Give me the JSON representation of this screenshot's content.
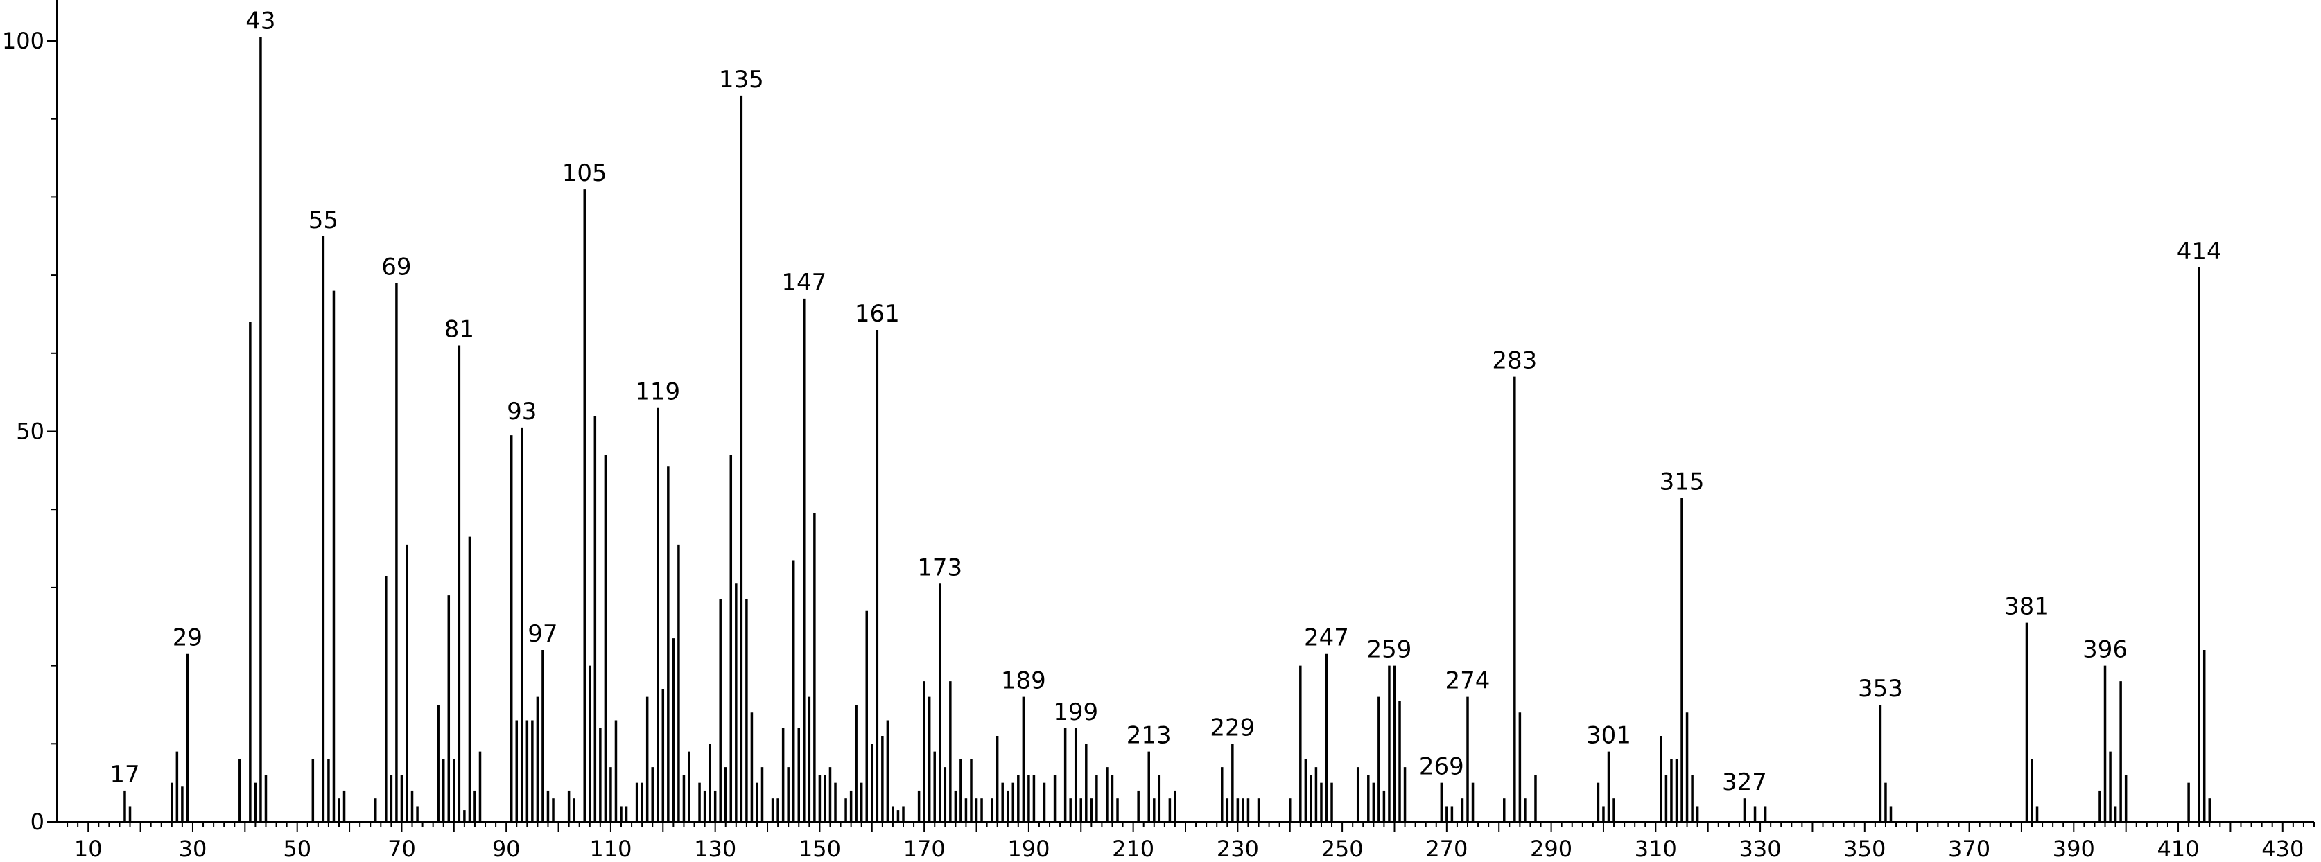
{
  "chart_data": {
    "type": "bar",
    "title": "",
    "xlabel": "",
    "ylabel": "",
    "xlim": [
      4,
      436
    ],
    "ylim": [
      0,
      105
    ],
    "xticks": [
      10,
      30,
      50,
      70,
      90,
      110,
      130,
      150,
      170,
      190,
      210,
      230,
      250,
      270,
      290,
      310,
      330,
      350,
      370,
      390,
      410,
      430
    ],
    "yticks": [
      0,
      50,
      100
    ],
    "grid": false,
    "labeled_peaks": [
      17,
      29,
      43,
      55,
      69,
      81,
      93,
      97,
      105,
      119,
      135,
      147,
      161,
      173,
      189,
      199,
      213,
      229,
      247,
      259,
      269,
      274,
      283,
      301,
      315,
      327,
      353,
      381,
      396,
      414
    ],
    "peaks": [
      {
        "x": 17,
        "y": 4
      },
      {
        "x": 18,
        "y": 2
      },
      {
        "x": 26,
        "y": 5
      },
      {
        "x": 27,
        "y": 9
      },
      {
        "x": 28,
        "y": 4.5
      },
      {
        "x": 29,
        "y": 21.5
      },
      {
        "x": 39,
        "y": 8
      },
      {
        "x": 41,
        "y": 64
      },
      {
        "x": 42,
        "y": 5
      },
      {
        "x": 43,
        "y": 100.5
      },
      {
        "x": 44,
        "y": 6
      },
      {
        "x": 53,
        "y": 8
      },
      {
        "x": 55,
        "y": 75
      },
      {
        "x": 56,
        "y": 8
      },
      {
        "x": 57,
        "y": 68
      },
      {
        "x": 58,
        "y": 3
      },
      {
        "x": 59,
        "y": 4
      },
      {
        "x": 65,
        "y": 3
      },
      {
        "x": 67,
        "y": 31.5
      },
      {
        "x": 68,
        "y": 6
      },
      {
        "x": 69,
        "y": 69
      },
      {
        "x": 70,
        "y": 6
      },
      {
        "x": 71,
        "y": 35.5
      },
      {
        "x": 72,
        "y": 4
      },
      {
        "x": 73,
        "y": 2
      },
      {
        "x": 77,
        "y": 15
      },
      {
        "x": 78,
        "y": 8
      },
      {
        "x": 79,
        "y": 29
      },
      {
        "x": 80,
        "y": 8
      },
      {
        "x": 81,
        "y": 61
      },
      {
        "x": 82,
        "y": 1.5
      },
      {
        "x": 83,
        "y": 36.5
      },
      {
        "x": 84,
        "y": 4
      },
      {
        "x": 85,
        "y": 9
      },
      {
        "x": 91,
        "y": 49.5
      },
      {
        "x": 92,
        "y": 13
      },
      {
        "x": 93,
        "y": 50.5
      },
      {
        "x": 94,
        "y": 13
      },
      {
        "x": 95,
        "y": 13
      },
      {
        "x": 96,
        "y": 16
      },
      {
        "x": 97,
        "y": 22
      },
      {
        "x": 98,
        "y": 4
      },
      {
        "x": 99,
        "y": 3
      },
      {
        "x": 102,
        "y": 4
      },
      {
        "x": 103,
        "y": 3
      },
      {
        "x": 105,
        "y": 81
      },
      {
        "x": 106,
        "y": 20
      },
      {
        "x": 107,
        "y": 52
      },
      {
        "x": 108,
        "y": 12
      },
      {
        "x": 109,
        "y": 47
      },
      {
        "x": 110,
        "y": 7
      },
      {
        "x": 111,
        "y": 13
      },
      {
        "x": 112,
        "y": 2
      },
      {
        "x": 113,
        "y": 2
      },
      {
        "x": 115,
        "y": 5
      },
      {
        "x": 116,
        "y": 5
      },
      {
        "x": 117,
        "y": 16
      },
      {
        "x": 118,
        "y": 7
      },
      {
        "x": 119,
        "y": 53
      },
      {
        "x": 120,
        "y": 17
      },
      {
        "x": 121,
        "y": 45.5
      },
      {
        "x": 122,
        "y": 23.5
      },
      {
        "x": 123,
        "y": 35.5
      },
      {
        "x": 124,
        "y": 6
      },
      {
        "x": 125,
        "y": 9
      },
      {
        "x": 127,
        "y": 5
      },
      {
        "x": 128,
        "y": 4
      },
      {
        "x": 129,
        "y": 10
      },
      {
        "x": 130,
        "y": 4
      },
      {
        "x": 131,
        "y": 28.5
      },
      {
        "x": 132,
        "y": 7
      },
      {
        "x": 133,
        "y": 47
      },
      {
        "x": 134,
        "y": 30.5
      },
      {
        "x": 135,
        "y": 93
      },
      {
        "x": 136,
        "y": 28.5
      },
      {
        "x": 137,
        "y": 14
      },
      {
        "x": 138,
        "y": 5
      },
      {
        "x": 139,
        "y": 7
      },
      {
        "x": 141,
        "y": 3
      },
      {
        "x": 142,
        "y": 3
      },
      {
        "x": 143,
        "y": 12
      },
      {
        "x": 144,
        "y": 7
      },
      {
        "x": 145,
        "y": 33.5
      },
      {
        "x": 146,
        "y": 12
      },
      {
        "x": 147,
        "y": 67
      },
      {
        "x": 148,
        "y": 16
      },
      {
        "x": 149,
        "y": 39.5
      },
      {
        "x": 150,
        "y": 6
      },
      {
        "x": 151,
        "y": 6
      },
      {
        "x": 152,
        "y": 7
      },
      {
        "x": 153,
        "y": 5
      },
      {
        "x": 155,
        "y": 3
      },
      {
        "x": 156,
        "y": 4
      },
      {
        "x": 157,
        "y": 15
      },
      {
        "x": 158,
        "y": 5
      },
      {
        "x": 159,
        "y": 27
      },
      {
        "x": 160,
        "y": 10
      },
      {
        "x": 161,
        "y": 63
      },
      {
        "x": 162,
        "y": 11
      },
      {
        "x": 163,
        "y": 13
      },
      {
        "x": 164,
        "y": 2
      },
      {
        "x": 165,
        "y": 1.5
      },
      {
        "x": 166,
        "y": 2
      },
      {
        "x": 169,
        "y": 4
      },
      {
        "x": 170,
        "y": 18
      },
      {
        "x": 171,
        "y": 16
      },
      {
        "x": 172,
        "y": 9
      },
      {
        "x": 173,
        "y": 30.5
      },
      {
        "x": 174,
        "y": 7
      },
      {
        "x": 175,
        "y": 18
      },
      {
        "x": 176,
        "y": 4
      },
      {
        "x": 177,
        "y": 8
      },
      {
        "x": 178,
        "y": 3
      },
      {
        "x": 179,
        "y": 8
      },
      {
        "x": 180,
        "y": 3
      },
      {
        "x": 181,
        "y": 3
      },
      {
        "x": 183,
        "y": 3
      },
      {
        "x": 184,
        "y": 11
      },
      {
        "x": 185,
        "y": 5
      },
      {
        "x": 186,
        "y": 4
      },
      {
        "x": 187,
        "y": 5
      },
      {
        "x": 188,
        "y": 6
      },
      {
        "x": 189,
        "y": 16
      },
      {
        "x": 190,
        "y": 6
      },
      {
        "x": 191,
        "y": 6
      },
      {
        "x": 193,
        "y": 5
      },
      {
        "x": 195,
        "y": 6
      },
      {
        "x": 197,
        "y": 12
      },
      {
        "x": 198,
        "y": 3
      },
      {
        "x": 199,
        "y": 12
      },
      {
        "x": 200,
        "y": 3
      },
      {
        "x": 201,
        "y": 10
      },
      {
        "x": 202,
        "y": 3
      },
      {
        "x": 203,
        "y": 6
      },
      {
        "x": 205,
        "y": 7
      },
      {
        "x": 206,
        "y": 6
      },
      {
        "x": 207,
        "y": 3
      },
      {
        "x": 211,
        "y": 4
      },
      {
        "x": 213,
        "y": 9
      },
      {
        "x": 214,
        "y": 3
      },
      {
        "x": 215,
        "y": 6
      },
      {
        "x": 217,
        "y": 3
      },
      {
        "x": 218,
        "y": 4
      },
      {
        "x": 227,
        "y": 7
      },
      {
        "x": 228,
        "y": 3
      },
      {
        "x": 229,
        "y": 10
      },
      {
        "x": 230,
        "y": 3
      },
      {
        "x": 231,
        "y": 3
      },
      {
        "x": 232,
        "y": 3
      },
      {
        "x": 234,
        "y": 3
      },
      {
        "x": 240,
        "y": 3
      },
      {
        "x": 242,
        "y": 20
      },
      {
        "x": 243,
        "y": 8
      },
      {
        "x": 244,
        "y": 6
      },
      {
        "x": 245,
        "y": 7
      },
      {
        "x": 246,
        "y": 5
      },
      {
        "x": 247,
        "y": 21.5
      },
      {
        "x": 248,
        "y": 5
      },
      {
        "x": 253,
        "y": 7
      },
      {
        "x": 255,
        "y": 6
      },
      {
        "x": 256,
        "y": 5
      },
      {
        "x": 257,
        "y": 16
      },
      {
        "x": 258,
        "y": 4
      },
      {
        "x": 259,
        "y": 20
      },
      {
        "x": 260,
        "y": 20
      },
      {
        "x": 261,
        "y": 15.5
      },
      {
        "x": 262,
        "y": 7
      },
      {
        "x": 269,
        "y": 5
      },
      {
        "x": 270,
        "y": 2
      },
      {
        "x": 271,
        "y": 2
      },
      {
        "x": 273,
        "y": 3
      },
      {
        "x": 274,
        "y": 16
      },
      {
        "x": 275,
        "y": 5
      },
      {
        "x": 281,
        "y": 3
      },
      {
        "x": 283,
        "y": 57
      },
      {
        "x": 284,
        "y": 14
      },
      {
        "x": 285,
        "y": 3
      },
      {
        "x": 287,
        "y": 6
      },
      {
        "x": 299,
        "y": 5
      },
      {
        "x": 300,
        "y": 2
      },
      {
        "x": 301,
        "y": 9
      },
      {
        "x": 302,
        "y": 3
      },
      {
        "x": 311,
        "y": 11
      },
      {
        "x": 312,
        "y": 6
      },
      {
        "x": 313,
        "y": 8
      },
      {
        "x": 314,
        "y": 8
      },
      {
        "x": 315,
        "y": 41.5
      },
      {
        "x": 316,
        "y": 14
      },
      {
        "x": 317,
        "y": 6
      },
      {
        "x": 318,
        "y": 2
      },
      {
        "x": 327,
        "y": 3
      },
      {
        "x": 329,
        "y": 2
      },
      {
        "x": 331,
        "y": 2
      },
      {
        "x": 353,
        "y": 15
      },
      {
        "x": 354,
        "y": 5
      },
      {
        "x": 355,
        "y": 2
      },
      {
        "x": 381,
        "y": 25.5
      },
      {
        "x": 382,
        "y": 8
      },
      {
        "x": 383,
        "y": 2
      },
      {
        "x": 395,
        "y": 4
      },
      {
        "x": 396,
        "y": 20
      },
      {
        "x": 397,
        "y": 9
      },
      {
        "x": 398,
        "y": 2
      },
      {
        "x": 399,
        "y": 18
      },
      {
        "x": 400,
        "y": 6
      },
      {
        "x": 412,
        "y": 5
      },
      {
        "x": 414,
        "y": 71
      },
      {
        "x": 415,
        "y": 22
      },
      {
        "x": 416,
        "y": 3
      }
    ]
  }
}
